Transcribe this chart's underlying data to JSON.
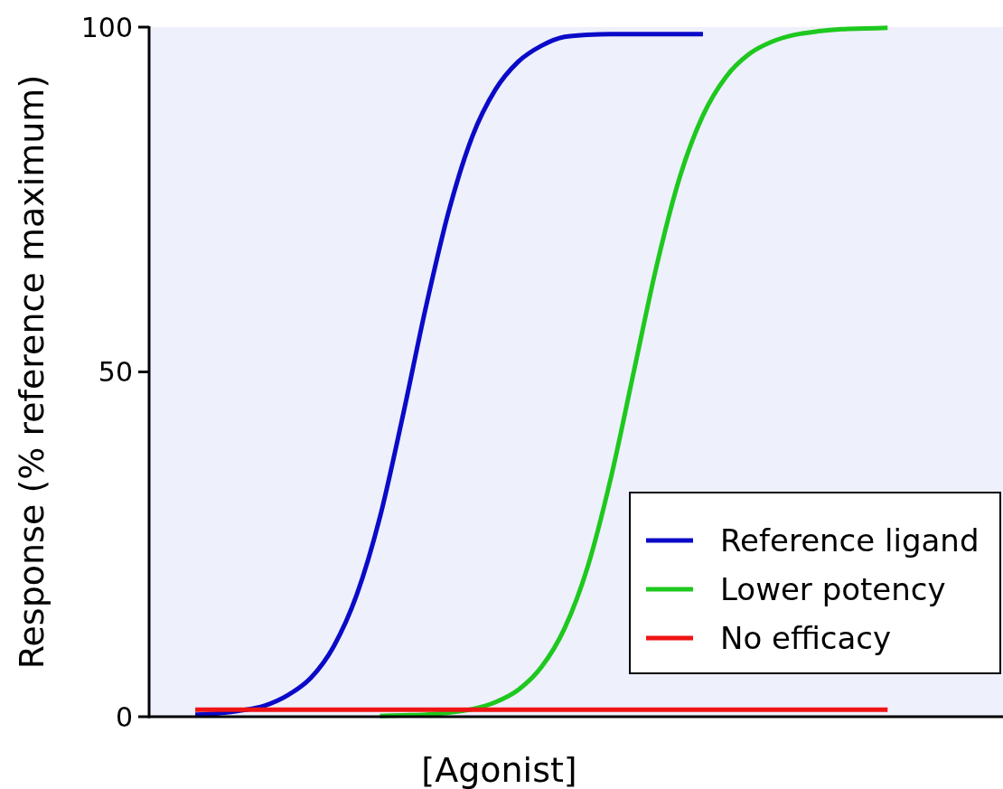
{
  "chart_data": {
    "type": "line",
    "xlabel": "[Agonist]",
    "ylabel": "Response (% reference maximum)",
    "categories": [
      null,
      null,
      null,
      null,
      null,
      null,
      null,
      null,
      null,
      null,
      null,
      null,
      null,
      null,
      null,
      null,
      null,
      null,
      null,
      null,
      null,
      null,
      null,
      null,
      null,
      null,
      null,
      null,
      null,
      null,
      null,
      null,
      null,
      null,
      null,
      null,
      null,
      null
    ],
    "series": [
      {
        "name": "Reference ligand",
        "color": "#0a0ac8",
        "values": [
          null,
          null,
          0.3,
          0.5,
          0.9,
          1.6,
          3.1,
          5.6,
          10.2,
          17.7,
          28.9,
          43.7,
          59.5,
          73.5,
          84.1,
          90.9,
          95,
          97.3,
          98.6,
          98.9,
          99,
          99,
          99,
          99,
          99,
          null,
          null,
          null,
          null,
          null,
          null,
          null,
          null,
          null,
          null,
          null,
          null,
          null
        ]
      },
      {
        "name": "Lower potency",
        "color": "#1ec81e",
        "values": [
          null,
          null,
          null,
          null,
          null,
          null,
          null,
          null,
          null,
          null,
          0.1,
          0.2,
          0.3,
          0.6,
          1.1,
          2.1,
          3.9,
          7.2,
          12.8,
          21.7,
          34.5,
          50,
          65.5,
          78.3,
          87.2,
          92.8,
          96.1,
          97.9,
          98.9,
          99.4,
          99.7,
          99.8,
          99.9,
          null,
          null,
          null,
          null,
          null
        ]
      },
      {
        "name": "No efficacy",
        "color": "#f01414",
        "values": [
          null,
          null,
          1,
          1,
          1,
          1,
          1,
          1,
          1,
          1,
          1,
          1,
          1,
          1,
          1,
          1,
          1,
          1,
          1,
          1,
          1,
          1,
          1,
          1,
          1,
          1,
          1,
          1,
          1,
          1,
          1,
          1,
          1,
          null,
          null,
          null,
          null,
          null
        ]
      }
    ],
    "ylim": [
      0,
      100
    ],
    "yticks": [
      0,
      50,
      100
    ],
    "legend": "bottom right",
    "grid": false
  }
}
